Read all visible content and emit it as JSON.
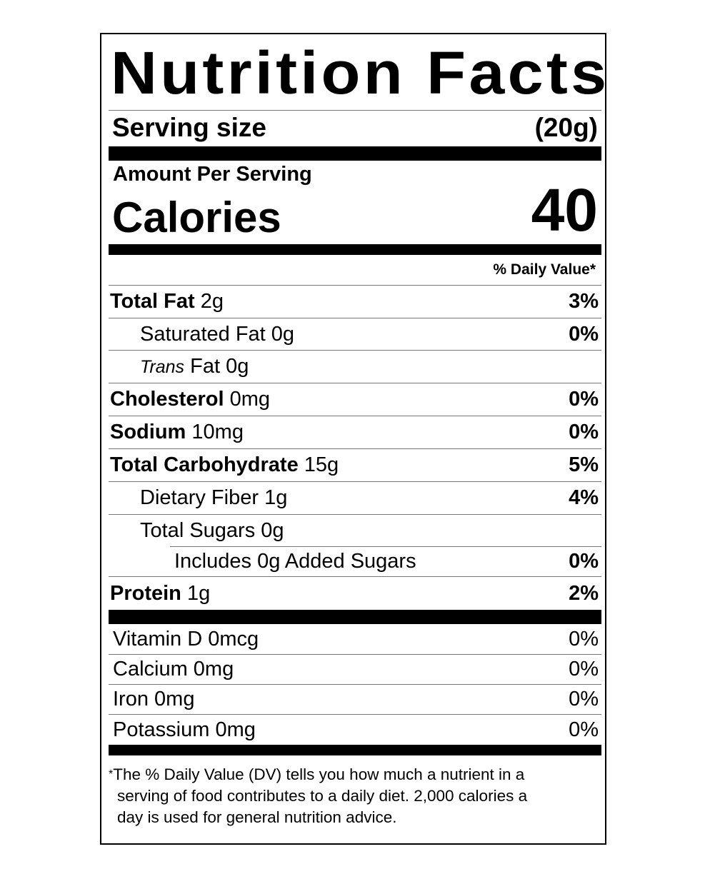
{
  "title": "Nutrition Facts",
  "serving": {
    "label": "Serving size",
    "value": "(20g)"
  },
  "amount_per_serving": "Amount Per Serving",
  "calories": {
    "label": "Calories",
    "value": "40"
  },
  "dv_header": "% Daily Value*",
  "nutrients": [
    {
      "name": "Total Fat",
      "amount": "2g",
      "dv": "3%",
      "bold": true,
      "indent": 0
    },
    {
      "name": "Saturated Fat",
      "amount": "0g",
      "dv": "0%",
      "bold": false,
      "indent": 1
    },
    {
      "name_italic": "Trans",
      "name": "Fat",
      "amount": "0g",
      "dv": "",
      "bold": false,
      "indent": 1
    },
    {
      "name": "Cholesterol",
      "amount": "0mg",
      "dv": "0%",
      "bold": true,
      "indent": 0
    },
    {
      "name": "Sodium",
      "amount": "10mg",
      "dv": "0%",
      "bold": true,
      "indent": 0
    },
    {
      "name": "Total Carbohydrate",
      "amount": "15g",
      "dv": "5%",
      "bold": true,
      "indent": 0
    },
    {
      "name": "Dietary Fiber",
      "amount": "1g",
      "dv": "4%",
      "bold": false,
      "indent": 1
    },
    {
      "name": "Total Sugars",
      "amount": "0g",
      "dv": "",
      "bold": false,
      "indent": 1
    },
    {
      "name": "Includes 0g Added Sugars",
      "amount": "",
      "dv": "0%",
      "bold": false,
      "indent": 2
    },
    {
      "name": "Protein",
      "amount": "1g",
      "dv": "2%",
      "bold": true,
      "indent": 0
    }
  ],
  "vitamins": [
    {
      "name": "Vitamin D 0mcg",
      "dv": "0%"
    },
    {
      "name": "Calcium 0mg",
      "dv": "0%"
    },
    {
      "name": "Iron 0mg",
      "dv": "0%"
    },
    {
      "name": "Potassium 0mg",
      "dv": "0%"
    }
  ],
  "footnote": {
    "star": "*",
    "lines": [
      "The % Daily Value (DV) tells you how much a nutrient in a",
      "serving of food contributes to a daily diet. 2,000 calories a",
      "day is used for general nutrition advice."
    ]
  }
}
